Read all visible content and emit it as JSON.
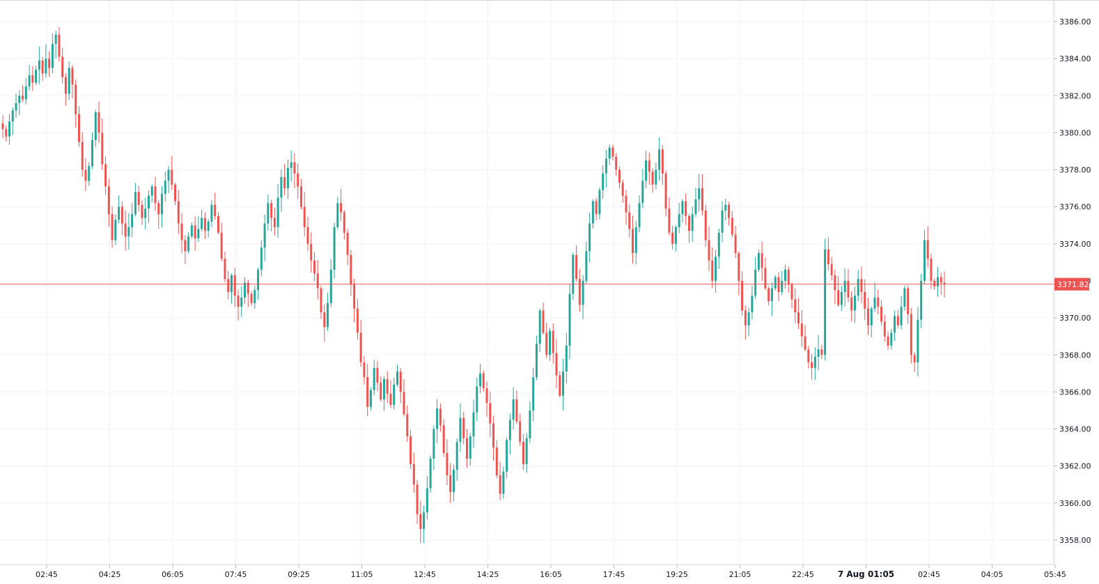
{
  "chart_data": {
    "type": "candlestick",
    "x_tick_labels": [
      "02:45",
      "04:25",
      "06:05",
      "07:45",
      "09:25",
      "11:05",
      "12:45",
      "14:25",
      "16:05",
      "17:45",
      "19:25",
      "21:05",
      "22:45",
      "7 Aug 01:05",
      "02:45",
      "04:05",
      "05:45"
    ],
    "x_tick_bold": [
      false,
      false,
      false,
      false,
      false,
      false,
      false,
      false,
      false,
      false,
      false,
      false,
      false,
      true,
      false,
      false,
      false
    ],
    "y_tick_labels": [
      "3386.00",
      "3384.00",
      "3382.00",
      "3380.00",
      "3378.00",
      "3376.00",
      "3374.00",
      "3372.00",
      "3370.00",
      "3368.00",
      "3366.00",
      "3364.00",
      "3362.00",
      "3360.00",
      "3358.00"
    ],
    "ylim": [
      3357.0,
      3387.0
    ],
    "y_ticks": [
      3386,
      3384,
      3382,
      3380,
      3378,
      3376,
      3374,
      3372,
      3370,
      3368,
      3366,
      3364,
      3362,
      3360,
      3358
    ],
    "current_price": 3371.82,
    "current_price_label": "3371.82",
    "colors": {
      "up": "#26a69a",
      "down": "#ef5350",
      "grid": "#f0f3fa",
      "axis": "#d1d4dc",
      "price_line": "#ef5350"
    },
    "close_series": [
      3380.2,
      3379.8,
      3380.6,
      3381.2,
      3381.6,
      3382.0,
      3381.8,
      3382.5,
      3383.1,
      3382.7,
      3383.4,
      3383.9,
      3383.2,
      3384.0,
      3383.5,
      3384.8,
      3385.3,
      3384.1,
      3383.0,
      3382.1,
      3383.5,
      3382.6,
      3381.0,
      3379.5,
      3378.0,
      3377.4,
      3378.2,
      3379.6,
      3381.1,
      3380.0,
      3378.3,
      3377.1,
      3375.6,
      3374.2,
      3375.3,
      3376.0,
      3375.1,
      3374.4,
      3374.9,
      3375.6,
      3376.8,
      3376.1,
      3375.4,
      3375.9,
      3376.6,
      3377.1,
      3376.2,
      3375.6,
      3376.7,
      3377.4,
      3378.0,
      3377.2,
      3376.3,
      3375.1,
      3374.2,
      3373.6,
      3374.4,
      3375.0,
      3374.3,
      3374.8,
      3375.4,
      3374.7,
      3375.2,
      3376.1,
      3375.5,
      3374.6,
      3373.2,
      3372.1,
      3371.4,
      3372.3,
      3371.2,
      3370.6,
      3371.1,
      3371.9,
      3371.3,
      3370.8,
      3371.5,
      3372.6,
      3373.8,
      3375.1,
      3376.2,
      3375.4,
      3374.9,
      3376.5,
      3377.6,
      3377.0,
      3378.1,
      3378.4,
      3377.8,
      3377.1,
      3376.0,
      3374.9,
      3374.0,
      3373.1,
      3372.4,
      3371.6,
      3370.3,
      3369.5,
      3370.8,
      3372.6,
      3374.9,
      3376.2,
      3375.7,
      3374.6,
      3373.4,
      3371.8,
      3370.5,
      3369.2,
      3367.6,
      3366.8,
      3365.2,
      3366.1,
      3367.3,
      3366.5,
      3365.6,
      3366.7,
      3365.9,
      3365.3,
      3366.4,
      3367.1,
      3366.0,
      3364.8,
      3363.6,
      3362.1,
      3361.0,
      3359.4,
      3358.6,
      3359.5,
      3360.8,
      3362.4,
      3364.0,
      3365.1,
      3364.2,
      3362.7,
      3361.5,
      3360.6,
      3361.8,
      3363.3,
      3364.6,
      3363.5,
      3362.4,
      3363.6,
      3364.9,
      3366.3,
      3367.0,
      3366.2,
      3365.4,
      3364.3,
      3363.0,
      3361.5,
      3360.5,
      3361.7,
      3363.4,
      3364.5,
      3365.6,
      3364.4,
      3363.3,
      3362.1,
      3363.5,
      3365.0,
      3366.8,
      3368.6,
      3370.4,
      3369.2,
      3368.0,
      3369.3,
      3368.1,
      3366.9,
      3365.8,
      3367.1,
      3368.5,
      3371.3,
      3373.4,
      3372.1,
      3370.7,
      3372.0,
      3373.6,
      3375.1,
      3376.3,
      3375.6,
      3376.9,
      3377.8,
      3378.6,
      3379.2,
      3378.7,
      3378.0,
      3377.3,
      3376.6,
      3375.7,
      3374.8,
      3373.5,
      3374.9,
      3376.2,
      3377.4,
      3378.5,
      3377.9,
      3377.2,
      3378.0,
      3379.1,
      3377.8,
      3375.9,
      3374.6,
      3374.0,
      3374.9,
      3375.6,
      3376.3,
      3375.5,
      3374.7,
      3375.6,
      3376.4,
      3377.0,
      3375.8,
      3374.2,
      3373.1,
      3372.0,
      3373.3,
      3374.6,
      3375.8,
      3376.1,
      3375.4,
      3374.5,
      3373.5,
      3372.0,
      3370.4,
      3369.6,
      3370.3,
      3371.2,
      3372.6,
      3373.5,
      3372.7,
      3371.6,
      3370.9,
      3371.6,
      3372.2,
      3371.4,
      3372.0,
      3372.6,
      3371.8,
      3371.0,
      3370.3,
      3369.7,
      3369.0,
      3368.3,
      3367.6,
      3367.3,
      3367.9,
      3368.3,
      3368.0,
      3373.7,
      3372.9,
      3372.3,
      3371.5,
      3370.7,
      3371.4,
      3372.0,
      3371.1,
      3370.4,
      3371.2,
      3372.1,
      3371.4,
      3370.5,
      3369.6,
      3370.5,
      3371.1,
      3370.6,
      3369.8,
      3369.0,
      3368.5,
      3369.2,
      3370.1,
      3369.6,
      3370.6,
      3371.6,
      3370.2,
      3368.0,
      3367.6,
      3369.9,
      3372.0,
      3374.2,
      3373.2,
      3372.0,
      3371.7,
      3372.2,
      3371.9,
      3371.82
    ]
  }
}
